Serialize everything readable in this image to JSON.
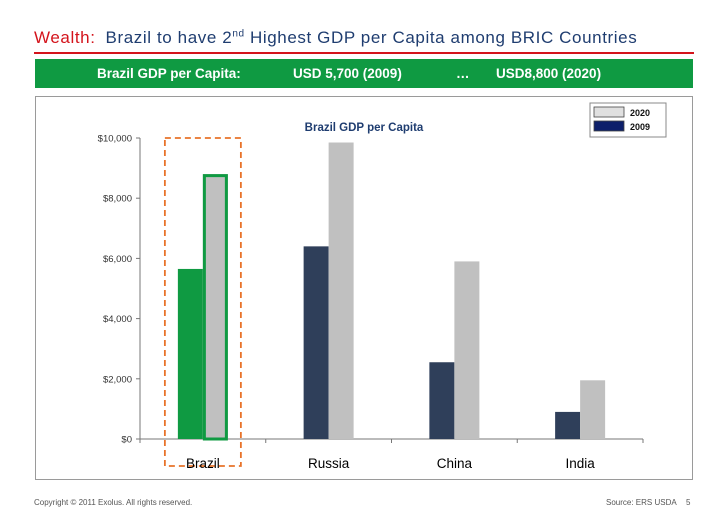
{
  "header": {
    "title_prefix": "Wealth:",
    "title_main": "Brazil to have 2",
    "title_sup": "nd",
    "title_suffix": " Highest GDP per Capita among BRIC Countries"
  },
  "banner": {
    "label": "Brazil GDP per Capita:",
    "value_2009": "USD 5,700 (2009)",
    "ellipsis": "…",
    "value_2020": "USD8,800 (2020)"
  },
  "chart_data": {
    "type": "bar",
    "title": "Brazil GDP per Capita",
    "categories": [
      "Brazil",
      "Russia",
      "China",
      "India"
    ],
    "series": [
      {
        "name": "2009",
        "values": [
          5650,
          6400,
          2550,
          900
        ]
      },
      {
        "name": "2020",
        "values": [
          8800,
          9850,
          5900,
          1950
        ]
      }
    ],
    "ylim": [
      0,
      10000
    ],
    "yticks": [
      0,
      2000,
      4000,
      6000,
      8000,
      10000
    ],
    "ytick_labels": [
      "$0",
      "$2,000",
      "$4,000",
      "$6,000",
      "$8,000",
      "$10,000"
    ],
    "legend": {
      "placement": "top-right",
      "entries": [
        "2020",
        "2009"
      ]
    },
    "grid": false,
    "highlight": {
      "category": "Brazil",
      "series_2009_color": "#0f9a42",
      "border_color": "#0f9a42",
      "dashed_box_color": "#e8732a"
    },
    "colors": {
      "2009": "#2f3f5a",
      "2020": "#c0c0c0",
      "legend_2009": "#0d1f6a",
      "legend_2020": "#e0e0e0"
    }
  },
  "footer": {
    "copyright": "Copyright © 2011 Exolus. All rights reserved.",
    "source": "Source:  ERS USDA",
    "page_number": "5"
  }
}
